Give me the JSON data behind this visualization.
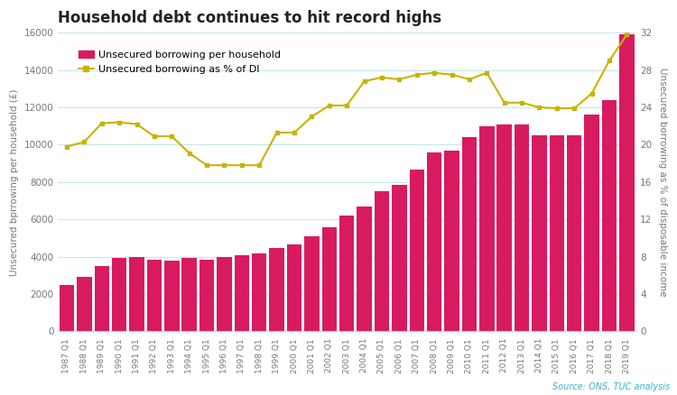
{
  "title": "Household debt continues to hit record highs",
  "source": "Source: ONS, TUC analysis",
  "ylabel_left": "Unsecured bprrowing per household (£)",
  "ylabel_right": "Unsecured borrowing as % of disposable income",
  "bar_color": "#d81b60",
  "line_color": "#c8b400",
  "line_marker": "s",
  "background_color": "#ffffff",
  "legend1": "Unsecured borrowing per household",
  "legend2": "Unsecured borrowing as % of DI",
  "categories": [
    "1987 Q1",
    "1988 Q1",
    "1989 Q1",
    "1990 Q1",
    "1991 Q1",
    "1992 Q1",
    "1993 Q1",
    "1994 Q1",
    "1995 Q1",
    "1996 Q1",
    "1997 Q1",
    "1998 Q1",
    "1999 Q1",
    "2000 Q1",
    "2001 Q1",
    "2002 Q1",
    "2003 Q1",
    "2004 Q1",
    "2005 Q1",
    "2006 Q1",
    "2007 Q1",
    "2008 Q1",
    "2009 Q1",
    "2010 Q1",
    "2011 Q1",
    "2012 Q1",
    "2013 Q1",
    "2014 Q1",
    "2015 Q1",
    "2016 Q1",
    "2017 Q1",
    "2018 Q1",
    "2019 Q1"
  ],
  "bar_values": [
    2500,
    2900,
    3500,
    3950,
    4000,
    3850,
    3800,
    3950,
    3850,
    4000,
    4100,
    4200,
    4450,
    4650,
    5100,
    5600,
    6200,
    6700,
    7500,
    7850,
    8650,
    9600,
    9700,
    10400,
    11000,
    11100,
    11100,
    10500,
    10500,
    10500,
    11600,
    12400,
    15900
  ],
  "line_values": [
    19.8,
    20.3,
    22.3,
    22.4,
    22.2,
    20.9,
    20.9,
    19.1,
    17.8,
    17.8,
    17.8,
    17.8,
    21.3,
    21.3,
    23.0,
    24.2,
    24.2,
    26.8,
    27.2,
    27.0,
    27.5,
    27.7,
    27.5,
    27.0,
    27.7,
    24.5,
    24.5,
    24.0,
    23.9,
    23.9,
    25.5,
    29.0,
    31.8
  ],
  "ylim_left": [
    0,
    16000
  ],
  "ylim_right": [
    0,
    32
  ],
  "yticks_left": [
    0,
    2000,
    4000,
    6000,
    8000,
    10000,
    12000,
    14000,
    16000
  ],
  "yticks_right": [
    0,
    4,
    8,
    12,
    16,
    20,
    24,
    28,
    32
  ],
  "grid_color": "#c5e8ef",
  "spine_color": "#cccccc",
  "tick_color": "#777777",
  "title_fontsize": 12,
  "axis_label_fontsize": 7.5,
  "tick_fontsize": 7.5,
  "xtick_fontsize": 6.5,
  "legend_fontsize": 8,
  "source_fontsize": 7,
  "source_color": "#40b0c8"
}
